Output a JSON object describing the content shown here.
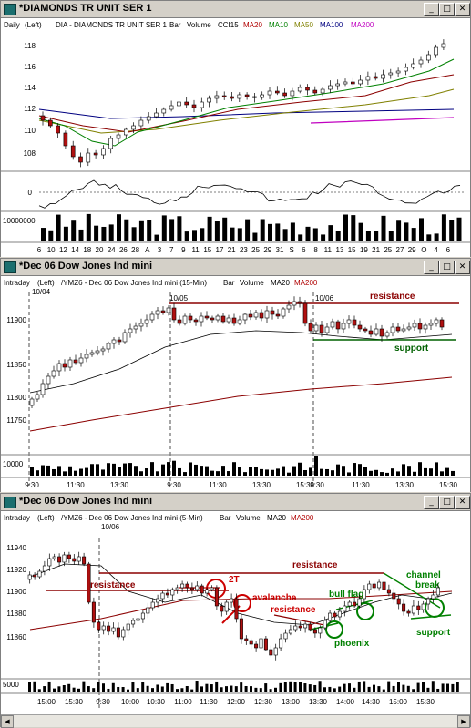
{
  "windows": [
    {
      "title": "*DIAMONDS TR UNIT SER 1",
      "subtitle": [
        "Daily",
        "(Left)",
        "DIA - DIAMONDS TR UNIT SER 1",
        "Bar",
        "Volume",
        "CCI15",
        "MA20",
        "MA10",
        "MA50",
        "MA100",
        "MA200"
      ],
      "y_ticks": [
        "118",
        "116",
        "114",
        "112",
        "110",
        "108"
      ],
      "osc_ticks": [
        "0"
      ],
      "vol_ticks": [
        "10000000"
      ],
      "x_ticks": [
        "6",
        "10",
        "12",
        "14",
        "18",
        "20",
        "24",
        "26",
        "28",
        "A",
        "3",
        "7",
        "9",
        "11",
        "15",
        "17",
        "21",
        "23",
        "25",
        "29",
        "31",
        "S",
        "6",
        "8",
        "11",
        "13",
        "15",
        "19",
        "21",
        "25",
        "27",
        "29",
        "O",
        "4",
        "6"
      ]
    },
    {
      "title": "*Dec 06  Dow Jones Ind mini",
      "subtitle": [
        "Intraday",
        "(Left)",
        "/YMZ6 - Dec 06  Dow Jones Ind mini (15-Min)",
        "Bar",
        "Volume",
        "MA20",
        "MA200"
      ],
      "y_ticks": [
        "11900",
        "11850",
        "11800",
        "11750"
      ],
      "vol_ticks": [
        "10000"
      ],
      "date_labels": [
        "10/04",
        "10/05",
        "10/06"
      ],
      "x_ticks": [
        "9:30",
        "11:30",
        "13:30",
        "9:30",
        "11:30",
        "13:30",
        "15:30",
        "9:30",
        "11:30",
        "13:30",
        "15:30"
      ],
      "annotations": {
        "resistance": "resistance",
        "support": "support"
      }
    },
    {
      "title": "*Dec 06  Dow Jones Ind mini",
      "subtitle": [
        "Intraday",
        "(Left)",
        "/YMZ6 - Dec 06  Dow Jones Ind mini (5-Min)",
        "Bar",
        "Volume",
        "MA20",
        "MA200"
      ],
      "y_ticks": [
        "11940",
        "11920",
        "11900",
        "11880",
        "11860"
      ],
      "vol_ticks": [
        "5000"
      ],
      "date_labels": [
        "10/06"
      ],
      "x_ticks": [
        "15:00",
        "15:30",
        "9:30",
        "10:00",
        "10:30",
        "11:00",
        "11:30",
        "12:00",
        "12:30",
        "13:00",
        "13:30",
        "14:00",
        "14:30",
        "15:00",
        "15:30"
      ],
      "annotations": {
        "resistance_left": "resistance",
        "resistance_top": "resistance",
        "resistance_mid": "resistance",
        "two_t": "2T",
        "avalanche": "avalanche",
        "bull_flag": "bull flag",
        "phoenix": "phoenix",
        "channel_break": "channel\nbreak",
        "channel": "channel",
        "break": "break",
        "support": "support"
      }
    }
  ],
  "colors": {
    "ma20_label": "#b00000",
    "ma10_label": "#008000",
    "ma50_label": "#808000",
    "ma100_label": "#000080",
    "ma200_label": "#c000c0",
    "resistance_line": "#8b0000",
    "support_line": "#006000",
    "annotation_red": "#cc0000",
    "annotation_green": "#008000"
  }
}
